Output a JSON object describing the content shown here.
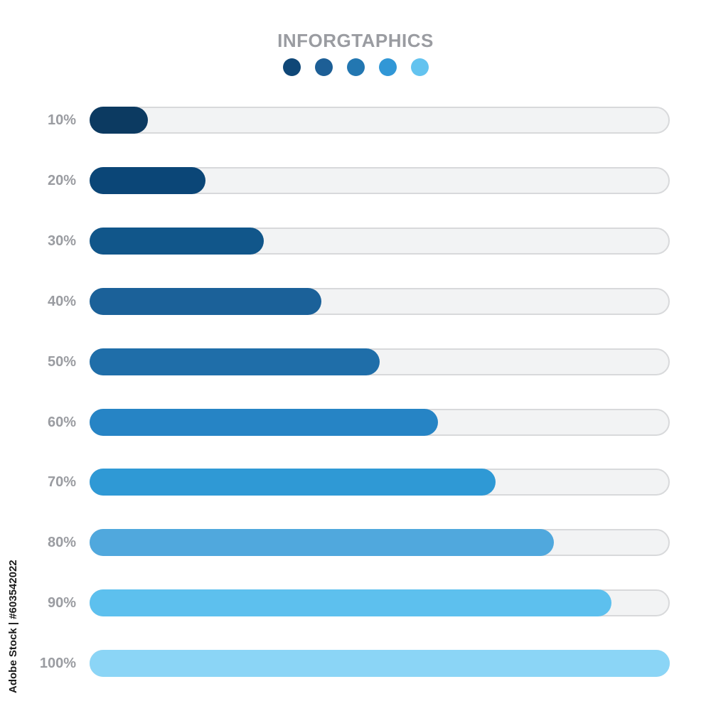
{
  "title": "INFORGTAPHICS",
  "legend_dots": [
    "#0f4777",
    "#1d5f96",
    "#2377b1",
    "#3197d6",
    "#63c3ef"
  ],
  "chart_data": {
    "type": "bar",
    "orientation": "horizontal",
    "title": "INFORGTAPHICS",
    "categories": [
      "10%",
      "20%",
      "30%",
      "40%",
      "50%",
      "60%",
      "70%",
      "80%",
      "90%",
      "100%"
    ],
    "values": [
      10,
      20,
      30,
      40,
      50,
      60,
      70,
      80,
      90,
      100
    ],
    "xlim": [
      0,
      100
    ],
    "grid": false,
    "colors": [
      "#0c3a61",
      "#0b4677",
      "#11568a",
      "#1b6199",
      "#1f6ea9",
      "#2684c5",
      "#2f99d5",
      "#50a8dd",
      "#5dc0ee",
      "#8bd5f6"
    ],
    "track_color": "#f2f3f4"
  },
  "watermark": {
    "side_text": "Adobe Stock | #603542022"
  }
}
